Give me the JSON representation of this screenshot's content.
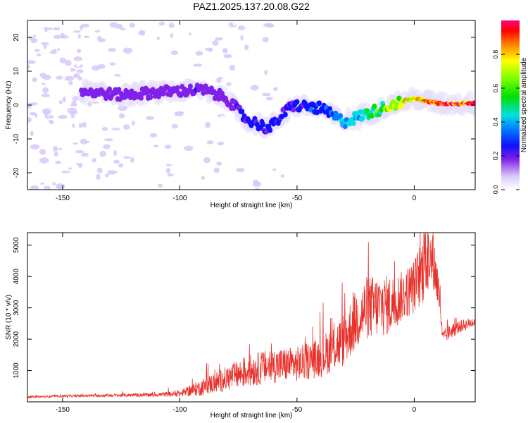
{
  "title": "PAZ1.2025.137.20.08.G22",
  "chart_data": [
    {
      "type": "heatmap",
      "xlabel": "Height of straight line (km)",
      "ylabel": "Frequency (Hz)",
      "xlim": [
        -165,
        26
      ],
      "ylim": [
        -25,
        25
      ],
      "xticks": [
        -150,
        -100,
        -50,
        0
      ],
      "yticks": [
        -20,
        -10,
        0,
        10,
        20
      ],
      "colorbar": {
        "label": "Normalized spectral amplitude",
        "range": [
          0,
          1
        ],
        "ticks": [
          "0.0",
          "0.2",
          "0.4",
          "0.6",
          "0.8"
        ]
      },
      "ridge": {
        "description_points_x": [
          -140,
          -125,
          -105,
          -90,
          -80,
          -72,
          -62,
          -52,
          -40,
          -30,
          -22,
          -10,
          0,
          10,
          26
        ],
        "description_points_y": [
          4,
          3,
          4,
          4.5,
          2,
          -4,
          -7,
          0,
          -1,
          -5,
          -3,
          0,
          2,
          0.5,
          0.5
        ],
        "amplitudes": [
          0.18,
          0.2,
          0.22,
          0.25,
          0.2,
          0.3,
          0.3,
          0.3,
          0.35,
          0.45,
          0.5,
          0.75,
          0.85,
          0.95,
          1.0
        ]
      }
    },
    {
      "type": "line",
      "xlabel": "Height of straight line (km)",
      "ylabel": "SNR (10 * v/v)",
      "xlim": [
        -165,
        26
      ],
      "ylim": [
        0,
        5400
      ],
      "xticks": [
        -150,
        -100,
        -50,
        0
      ],
      "yticks": [
        1000,
        2000,
        3000,
        4000,
        5000
      ],
      "series": [
        {
          "color": "#e8312a",
          "envelope_x": [
            -165,
            -150,
            -130,
            -110,
            -100,
            -90,
            -80,
            -70,
            -60,
            -50,
            -40,
            -30,
            -25,
            -20,
            -10,
            -5,
            0,
            5,
            8,
            11,
            12,
            15,
            20,
            26
          ],
          "envelope_y": [
            150,
            180,
            200,
            220,
            250,
            450,
            700,
            950,
            1100,
            1150,
            1350,
            1900,
            2500,
            2900,
            3000,
            3300,
            3600,
            4300,
            4500,
            3200,
            2000,
            2200,
            2400,
            2550
          ],
          "envelope_noise": [
            40,
            50,
            60,
            80,
            120,
            350,
            500,
            650,
            700,
            700,
            800,
            1100,
            1200,
            1300,
            1200,
            1000,
            1100,
            1500,
            1200,
            800,
            300,
            300,
            250,
            200
          ]
        }
      ]
    }
  ]
}
